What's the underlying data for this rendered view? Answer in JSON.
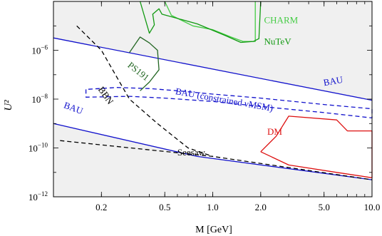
{
  "chart_data": {
    "type": "line",
    "xlabel": "M [GeV]",
    "ylabel": "U²",
    "x_scale": "log",
    "y_scale": "log",
    "xlim": [
      0.1,
      10.0
    ],
    "ylim": [
      1e-12,
      0.0001
    ],
    "x_ticks": [
      {
        "value": 0.2,
        "label": "0.2"
      },
      {
        "value": 0.5,
        "label": "0.5"
      },
      {
        "value": 1.0,
        "label": "1.0"
      },
      {
        "value": 2.0,
        "label": "2.0"
      },
      {
        "value": 5.0,
        "label": "5.0"
      },
      {
        "value": 10.0,
        "label": "10.0"
      }
    ],
    "y_ticks": [
      {
        "value": 1e-12,
        "base": "10",
        "exp": "−12"
      },
      {
        "value": 1e-10,
        "base": "10",
        "exp": "−10"
      },
      {
        "value": 1e-08,
        "base": "10",
        "exp": "−8"
      },
      {
        "value": 1e-06,
        "base": "10",
        "exp": "−6"
      }
    ],
    "colors": {
      "excluded_fill": "#f0f0f0",
      "bau": "#1111cc",
      "charm": "#44cc44",
      "nutev": "#119911",
      "ps191": "#226622",
      "dm": "#dd1111",
      "bbn": "#000000",
      "seesaw": "#000000"
    },
    "series": [
      {
        "label": "BAU",
        "style": "solid",
        "color": "#1111cc",
        "points": [
          [
            0.1,
            3.2e-06
          ],
          [
            10.0,
            9e-09
          ]
        ]
      },
      {
        "label": "BAU",
        "style": "solid",
        "color": "#1111cc",
        "points": [
          [
            0.1,
            1e-09
          ],
          [
            0.8,
            4.5e-11
          ],
          [
            10.0,
            5e-12
          ]
        ]
      },
      {
        "label": "BAU (constrained νMSM)",
        "style": "dashed",
        "color": "#1111cc",
        "points": [
          [
            0.16,
            2.5e-08
          ],
          [
            0.16,
            1.2e-08
          ],
          [
            0.3,
            1.3e-08
          ],
          [
            0.5,
            1.1e-08
          ],
          [
            1.0,
            8e-09
          ],
          [
            2.0,
            5e-09
          ],
          [
            5.0,
            2.8e-09
          ],
          [
            10.0,
            1.7e-09
          ],
          [
            10.0,
            4e-09
          ],
          [
            5.0,
            6e-09
          ],
          [
            2.0,
            1.1e-08
          ],
          [
            1.0,
            1.6e-08
          ],
          [
            0.6,
            2.2e-08
          ],
          [
            0.4,
            2.7e-08
          ],
          [
            0.25,
            3e-08
          ],
          [
            0.16,
            2.5e-08
          ]
        ]
      },
      {
        "label": "BBN",
        "style": "dashed",
        "color": "#000000",
        "points": [
          [
            0.14,
            1e-05
          ],
          [
            0.2,
            1e-06
          ],
          [
            0.3,
            1e-08
          ],
          [
            0.45,
            1e-09
          ],
          [
            0.7,
            1e-10
          ],
          [
            1.0,
            4.5e-11
          ]
        ]
      },
      {
        "label": "Seesaw",
        "style": "dashed",
        "color": "#000000",
        "points": [
          [
            0.11,
            2e-10
          ],
          [
            1.0,
            4.5e-11
          ],
          [
            10.0,
            5e-12
          ]
        ]
      },
      {
        "label": "CHARM",
        "style": "solid",
        "color": "#44cc44",
        "points": [
          [
            0.5,
            0.0001
          ],
          [
            0.55,
            2.7e-05
          ],
          [
            0.75,
            1e-05
          ],
          [
            1.0,
            7e-06
          ],
          [
            1.3,
            3.5e-06
          ],
          [
            1.55,
            2.3e-06
          ],
          [
            1.85,
            2.3e-06
          ],
          [
            1.85,
            0.0001
          ]
        ]
      },
      {
        "label": "NuTeV",
        "style": "solid",
        "color": "#119911",
        "points": [
          [
            0.35,
            0.0001
          ],
          [
            0.4,
            5e-06
          ],
          [
            0.43,
            1.1e-05
          ],
          [
            0.42,
            3e-05
          ],
          [
            0.46,
            5e-05
          ],
          [
            0.48,
            3e-05
          ],
          [
            0.8,
            1.2e-05
          ],
          [
            1.2,
            4e-06
          ],
          [
            1.5,
            2.1e-06
          ],
          [
            1.8,
            2.3e-06
          ],
          [
            1.95,
            3e-06
          ],
          [
            2.0,
            0.0001
          ]
        ]
      },
      {
        "label": "PS191",
        "style": "solid",
        "color": "#226622",
        "points": [
          [
            0.3,
            8e-07
          ],
          [
            0.35,
            3.5e-06
          ],
          [
            0.4,
            2e-06
          ],
          [
            0.45,
            1e-06
          ],
          [
            0.46,
            1.6e-07
          ],
          [
            0.4,
            5e-08
          ],
          [
            0.35,
            2.2e-08
          ]
        ]
      },
      {
        "label": "DM",
        "style": "solid",
        "color": "#dd1111",
        "points": [
          [
            2.0,
            7e-11
          ],
          [
            2.5,
            3e-10
          ],
          [
            3.0,
            2e-09
          ],
          [
            6.0,
            1.4e-09
          ],
          [
            7.0,
            5e-10
          ],
          [
            10.0,
            5e-10
          ],
          [
            10.0,
            6e-12
          ],
          [
            6.0,
            1e-11
          ],
          [
            3.0,
            2e-11
          ],
          [
            2.0,
            7e-11
          ]
        ]
      }
    ],
    "annotations": [
      {
        "text": "CHARM",
        "color": "#44cc44",
        "x": 2.1,
        "y": 1.3e-05,
        "rotate": 0
      },
      {
        "text": "NuTeV",
        "color": "#119911",
        "x": 2.1,
        "y": 1.7e-06,
        "rotate": 0
      },
      {
        "text": "PS191",
        "color": "#226622",
        "x": 0.29,
        "y": 2.2e-07,
        "rotate": 38
      },
      {
        "text": "BAU",
        "color": "#1111cc",
        "x": 5.0,
        "y": 3.5e-08,
        "rotate": -10
      },
      {
        "text": "BAU (constrained νMSM)",
        "color": "#1111cc",
        "x": 0.58,
        "y": 1.6e-08,
        "rotate": 10
      },
      {
        "text": "BBN",
        "color": "#000000",
        "x": 0.19,
        "y": 2.5e-08,
        "rotate": 55
      },
      {
        "text": "BAU",
        "color": "#1111cc",
        "x": 0.115,
        "y": 4.5e-09,
        "rotate": 20
      },
      {
        "text": "DM",
        "color": "#dd1111",
        "x": 2.2,
        "y": 3.5e-10,
        "rotate": 0
      },
      {
        "text": "Seesaw",
        "color": "#000000",
        "x": 0.6,
        "y": 5e-11,
        "rotate": 0
      }
    ]
  }
}
